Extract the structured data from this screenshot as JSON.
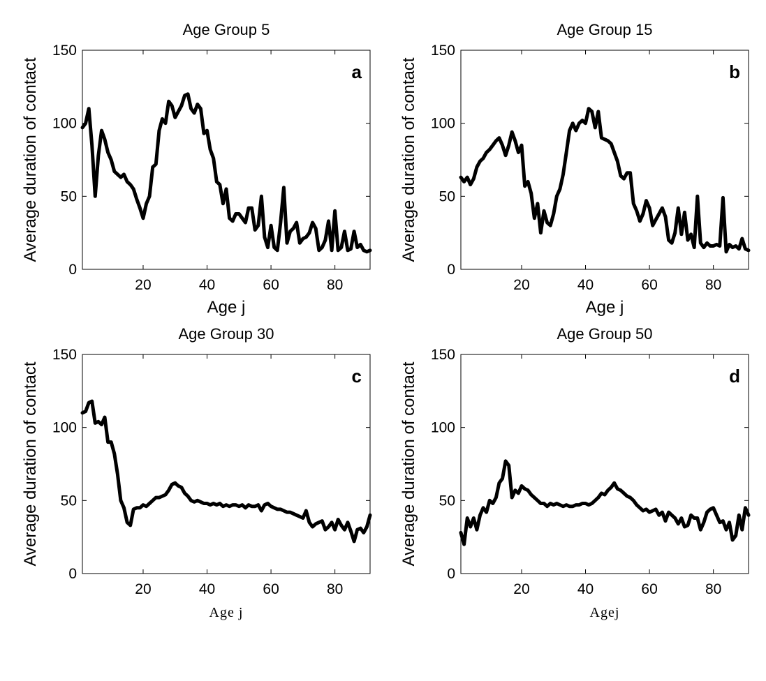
{
  "chart_data": [
    {
      "type": "line",
      "panel_letter": "a",
      "title": "Age Group 5",
      "xlabel": "Age j",
      "ylabel": "Average duration of contact",
      "xlim": [
        1,
        91
      ],
      "ylim": [
        0,
        150
      ],
      "xticks": [
        20,
        40,
        60,
        80
      ],
      "yticks": [
        0,
        50,
        100,
        150
      ],
      "xlabel_font": "sans",
      "grid": false,
      "series": [
        {
          "x": [
            1,
            2,
            3,
            4,
            5,
            6,
            7,
            8,
            9,
            10,
            11,
            12,
            13,
            14,
            15,
            16,
            17,
            18,
            19,
            20,
            21,
            22,
            23,
            24,
            25,
            26,
            27,
            28,
            29,
            30,
            31,
            32,
            33,
            34,
            35,
            36,
            37,
            38,
            39,
            40,
            41,
            42,
            43,
            44,
            45,
            46,
            47,
            48,
            49,
            50,
            51,
            52,
            53,
            54,
            55,
            56,
            57,
            58,
            59,
            60,
            61,
            62,
            63,
            64,
            65,
            66,
            67,
            68,
            69,
            70,
            71,
            72,
            73,
            74,
            75,
            76,
            77,
            78,
            79,
            80,
            81,
            82,
            83,
            84,
            85,
            86,
            87,
            88,
            89,
            90,
            91
          ],
          "y": [
            97,
            100,
            110,
            85,
            50,
            78,
            95,
            89,
            80,
            75,
            67,
            65,
            63,
            65,
            60,
            58,
            55,
            48,
            42,
            35,
            45,
            50,
            70,
            72,
            95,
            103,
            100,
            115,
            112,
            104,
            108,
            112,
            119,
            120,
            110,
            107,
            113,
            110,
            93,
            95,
            82,
            76,
            60,
            58,
            45,
            55,
            35,
            33,
            38,
            38,
            35,
            32,
            42,
            42,
            27,
            30,
            50,
            22,
            15,
            30,
            15,
            13,
            32,
            56,
            18,
            26,
            28,
            32,
            18,
            21,
            22,
            25,
            32,
            28,
            13,
            15,
            20,
            33,
            13,
            40,
            13,
            15,
            26,
            13,
            14,
            26,
            15,
            17,
            13,
            12,
            13
          ]
        }
      ]
    },
    {
      "type": "line",
      "panel_letter": "b",
      "title": "Age Group 15",
      "xlabel": "Age j",
      "ylabel": "Average duration of contact",
      "xlim": [
        1,
        91
      ],
      "ylim": [
        0,
        150
      ],
      "xticks": [
        20,
        40,
        60,
        80
      ],
      "yticks": [
        0,
        50,
        100,
        150
      ],
      "xlabel_font": "sans",
      "grid": false,
      "series": [
        {
          "x": [
            1,
            2,
            3,
            4,
            5,
            6,
            7,
            8,
            9,
            10,
            11,
            12,
            13,
            14,
            15,
            16,
            17,
            18,
            19,
            20,
            21,
            22,
            23,
            24,
            25,
            26,
            27,
            28,
            29,
            30,
            31,
            32,
            33,
            34,
            35,
            36,
            37,
            38,
            39,
            40,
            41,
            42,
            43,
            44,
            45,
            46,
            47,
            48,
            49,
            50,
            51,
            52,
            53,
            54,
            55,
            56,
            57,
            58,
            59,
            60,
            61,
            62,
            63,
            64,
            65,
            66,
            67,
            68,
            69,
            70,
            71,
            72,
            73,
            74,
            75,
            76,
            77,
            78,
            79,
            80,
            81,
            82,
            83,
            84,
            85,
            86,
            87,
            88,
            89,
            90,
            91
          ],
          "y": [
            63,
            60,
            63,
            58,
            62,
            70,
            74,
            76,
            80,
            82,
            85,
            88,
            90,
            85,
            78,
            85,
            94,
            88,
            80,
            85,
            57,
            60,
            52,
            35,
            45,
            25,
            40,
            32,
            30,
            38,
            50,
            55,
            65,
            80,
            95,
            100,
            95,
            100,
            102,
            100,
            110,
            108,
            97,
            108,
            90,
            89,
            88,
            86,
            80,
            74,
            64,
            62,
            66,
            66,
            45,
            40,
            33,
            38,
            47,
            42,
            30,
            34,
            38,
            42,
            36,
            20,
            18,
            25,
            42,
            24,
            39,
            20,
            24,
            15,
            50,
            18,
            15,
            18,
            16,
            16,
            17,
            16,
            49,
            12,
            17,
            15,
            16,
            14,
            21,
            14,
            13
          ]
        }
      ]
    },
    {
      "type": "line",
      "panel_letter": "c",
      "title": "Age Group 30",
      "xlabel": "Age j",
      "ylabel": "Average duration of contact",
      "xlim": [
        1,
        91
      ],
      "ylim": [
        0,
        150
      ],
      "xticks": [
        20,
        40,
        60,
        80
      ],
      "yticks": [
        0,
        50,
        100,
        150
      ],
      "xlabel_font": "serif",
      "grid": false,
      "series": [
        {
          "x": [
            1,
            2,
            3,
            4,
            5,
            6,
            7,
            8,
            9,
            10,
            11,
            12,
            13,
            14,
            15,
            16,
            17,
            18,
            19,
            20,
            21,
            22,
            23,
            24,
            25,
            26,
            27,
            28,
            29,
            30,
            31,
            32,
            33,
            34,
            35,
            36,
            37,
            38,
            39,
            40,
            41,
            42,
            43,
            44,
            45,
            46,
            47,
            48,
            49,
            50,
            51,
            52,
            53,
            54,
            55,
            56,
            57,
            58,
            59,
            60,
            61,
            62,
            63,
            64,
            65,
            66,
            67,
            68,
            69,
            70,
            71,
            72,
            73,
            74,
            75,
            76,
            77,
            78,
            79,
            80,
            81,
            82,
            83,
            84,
            85,
            86,
            87,
            88,
            89,
            90,
            91
          ],
          "y": [
            110,
            111,
            117,
            118,
            103,
            104,
            102,
            107,
            90,
            90,
            82,
            68,
            50,
            45,
            35,
            33,
            44,
            45,
            45,
            47,
            46,
            48,
            50,
            52,
            52,
            53,
            54,
            57,
            61,
            62,
            60,
            59,
            55,
            53,
            50,
            49,
            50,
            49,
            48,
            48,
            47,
            48,
            47,
            48,
            46,
            47,
            46,
            47,
            47,
            46,
            47,
            45,
            47,
            46,
            46,
            47,
            43,
            47,
            48,
            46,
            45,
            44,
            44,
            43,
            42,
            42,
            41,
            40,
            39,
            38,
            43,
            35,
            32,
            34,
            35,
            36,
            30,
            32,
            35,
            30,
            37,
            33,
            30,
            35,
            29,
            22,
            30,
            31,
            28,
            32,
            40
          ]
        }
      ]
    },
    {
      "type": "line",
      "panel_letter": "d",
      "title": "Age Group 50",
      "xlabel": "Agej",
      "ylabel": "Average duration of contact",
      "xlim": [
        1,
        91
      ],
      "ylim": [
        0,
        150
      ],
      "xticks": [
        20,
        40,
        60,
        80
      ],
      "yticks": [
        0,
        50,
        100,
        150
      ],
      "xlabel_font": "serif",
      "grid": false,
      "series": [
        {
          "x": [
            1,
            2,
            3,
            4,
            5,
            6,
            7,
            8,
            9,
            10,
            11,
            12,
            13,
            14,
            15,
            16,
            17,
            18,
            19,
            20,
            21,
            22,
            23,
            24,
            25,
            26,
            27,
            28,
            29,
            30,
            31,
            32,
            33,
            34,
            35,
            36,
            37,
            38,
            39,
            40,
            41,
            42,
            43,
            44,
            45,
            46,
            47,
            48,
            49,
            50,
            51,
            52,
            53,
            54,
            55,
            56,
            57,
            58,
            59,
            60,
            61,
            62,
            63,
            64,
            65,
            66,
            67,
            68,
            69,
            70,
            71,
            72,
            73,
            74,
            75,
            76,
            77,
            78,
            79,
            80,
            81,
            82,
            83,
            84,
            85,
            86,
            87,
            88,
            89,
            90,
            91
          ],
          "y": [
            28,
            20,
            38,
            32,
            38,
            30,
            40,
            45,
            42,
            50,
            48,
            52,
            62,
            65,
            77,
            74,
            52,
            57,
            55,
            60,
            58,
            57,
            54,
            52,
            50,
            48,
            48,
            46,
            48,
            47,
            48,
            47,
            46,
            47,
            46,
            46,
            47,
            47,
            48,
            48,
            47,
            48,
            50,
            52,
            55,
            54,
            57,
            59,
            62,
            58,
            57,
            55,
            53,
            52,
            50,
            47,
            45,
            43,
            44,
            42,
            43,
            44,
            40,
            42,
            36,
            42,
            40,
            38,
            34,
            38,
            32,
            33,
            40,
            38,
            38,
            30,
            35,
            42,
            44,
            45,
            40,
            35,
            36,
            30,
            35,
            23,
            26,
            40,
            30,
            45,
            40
          ]
        }
      ]
    }
  ]
}
